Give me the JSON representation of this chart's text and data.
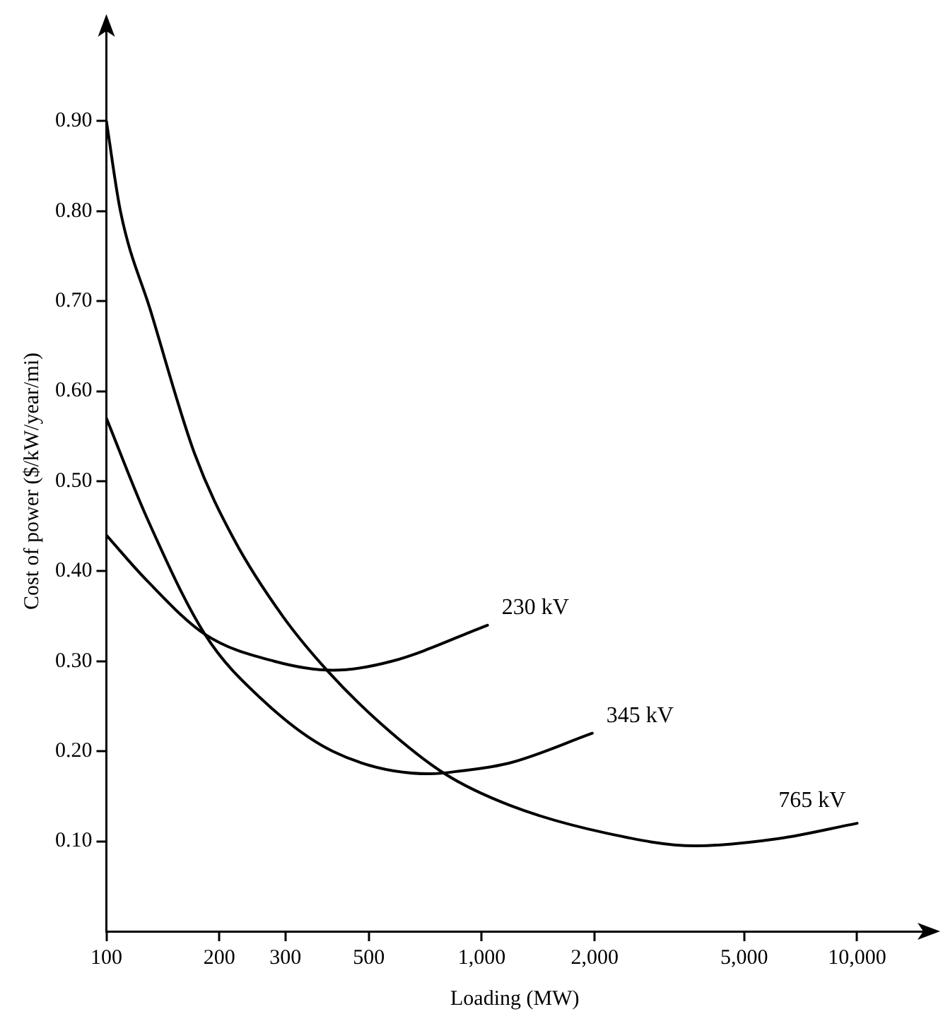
{
  "chart_data": {
    "type": "line",
    "xlabel": "Loading (MW)",
    "ylabel": "Cost of power ($/kW/year/mi)",
    "log": "x",
    "grid": false,
    "legend": false,
    "marker": "none",
    "line_style": "solid",
    "xlim": [
      100,
      15000
    ],
    "ylim": [
      0,
      1.0
    ],
    "xticks": [
      100,
      200,
      300,
      500,
      {
        "value": 1000,
        "label": "1,000"
      },
      {
        "value": 2000,
        "label": "2,000"
      },
      {
        "value": 5000,
        "label": "5,000"
      },
      {
        "value": 10000,
        "label": "10,000"
      }
    ],
    "yticks": [
      {
        "value": 0.1,
        "label": "0.10"
      },
      {
        "value": 0.2,
        "label": "0.20"
      },
      {
        "value": 0.3,
        "label": "0.30"
      },
      {
        "value": 0.4,
        "label": "0.40"
      },
      {
        "value": 0.5,
        "label": "0.50"
      },
      {
        "value": 0.6,
        "label": "0.60"
      },
      {
        "value": 0.7,
        "label": "0.70"
      },
      {
        "value": 0.8,
        "label": "0.80"
      },
      {
        "value": 0.9,
        "label": "0.90"
      }
    ],
    "series": [
      {
        "name": "230 kV",
        "color": "#000000",
        "x": [
          100,
          128,
          183,
          280,
          401,
          576,
          1036
        ],
        "values": [
          0.44,
          0.39,
          0.33,
          0.3,
          0.29,
          0.3,
          0.34
        ]
      },
      {
        "name": "345 kV",
        "color": "#000000",
        "x": [
          100,
          128,
          183,
          256,
          401,
          728,
          873,
          1187,
          1970
        ],
        "values": [
          0.57,
          0.46,
          0.33,
          0.26,
          0.2,
          0.175,
          0.178,
          0.187,
          0.22
        ]
      },
      {
        "name": "765 kV",
        "color": "#000000",
        "x": [
          100,
          109,
          131,
          172,
          219,
          295,
          387,
          541,
          797,
          1187,
          2150,
          3706,
          6180,
          10000
        ],
        "values": [
          0.9,
          0.8,
          0.69,
          0.53,
          0.435,
          0.35,
          0.29,
          0.23,
          0.175,
          0.14,
          0.109,
          0.095,
          0.103,
          0.12
        ]
      }
    ]
  }
}
